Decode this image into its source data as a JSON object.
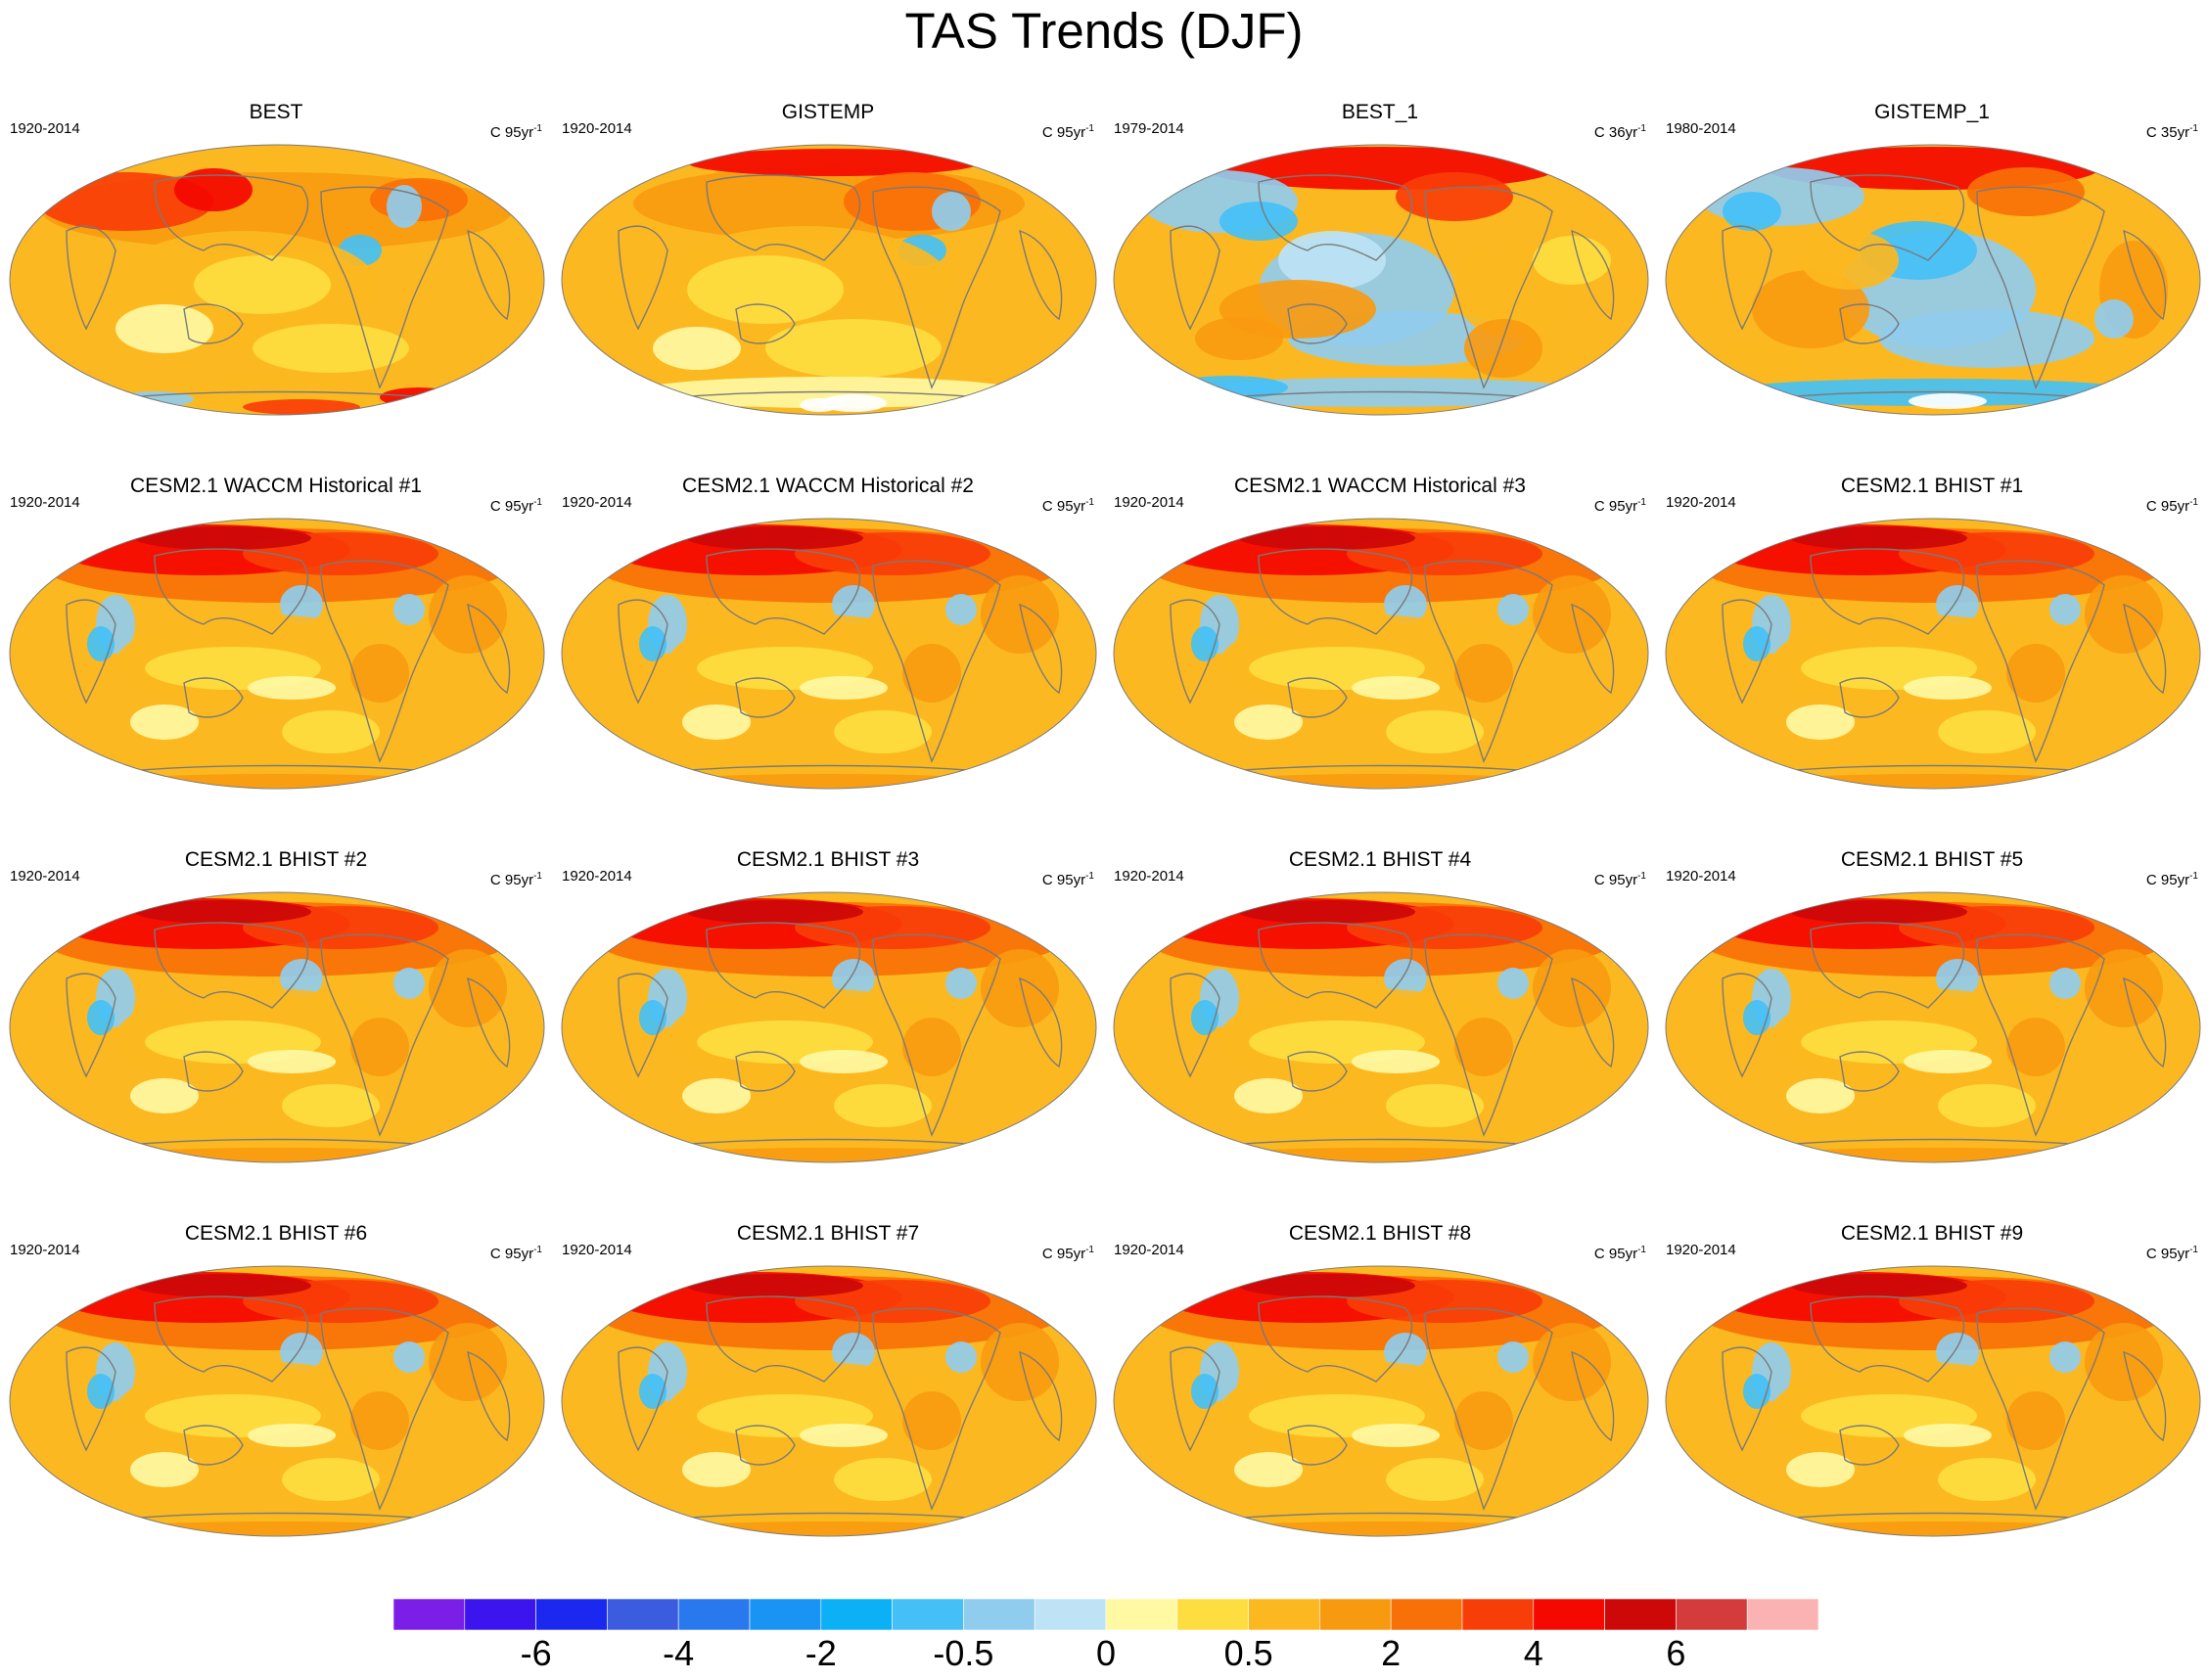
{
  "title": "TAS Trends (DJF)",
  "panels": [
    {
      "title": "BEST",
      "period": "1920-2014",
      "units": "C 95yr",
      "units_sup": "-1",
      "pattern": "best"
    },
    {
      "title": "GISTEMP",
      "period": "1920-2014",
      "units": "C 95yr",
      "units_sup": "-1",
      "pattern": "gistemp"
    },
    {
      "title": "BEST_1",
      "period": "1979-2014",
      "units": "C 36yr",
      "units_sup": "-1",
      "pattern": "recent"
    },
    {
      "title": "GISTEMP_1",
      "period": "1980-2014",
      "units": "C 35yr",
      "units_sup": "-1",
      "pattern": "recent2"
    },
    {
      "title": "CESM2.1 WACCM Historical #1",
      "period": "1920-2014",
      "units": "C 95yr",
      "units_sup": "-1",
      "pattern": "model"
    },
    {
      "title": "CESM2.1 WACCM Historical #2",
      "period": "1920-2014",
      "units": "C 95yr",
      "units_sup": "-1",
      "pattern": "model"
    },
    {
      "title": "CESM2.1 WACCM Historical #3",
      "period": "1920-2014",
      "units": "C 95yr",
      "units_sup": "-1",
      "pattern": "model"
    },
    {
      "title": "CESM2.1 BHIST #1",
      "period": "1920-2014",
      "units": "C 95yr",
      "units_sup": "-1",
      "pattern": "model"
    },
    {
      "title": "CESM2.1 BHIST #2",
      "period": "1920-2014",
      "units": "C 95yr",
      "units_sup": "-1",
      "pattern": "model"
    },
    {
      "title": "CESM2.1 BHIST #3",
      "period": "1920-2014",
      "units": "C 95yr",
      "units_sup": "-1",
      "pattern": "model"
    },
    {
      "title": "CESM2.1 BHIST #4",
      "period": "1920-2014",
      "units": "C 95yr",
      "units_sup": "-1",
      "pattern": "model"
    },
    {
      "title": "CESM2.1 BHIST #5",
      "period": "1920-2014",
      "units": "C 95yr",
      "units_sup": "-1",
      "pattern": "model"
    },
    {
      "title": "CESM2.1 BHIST #6",
      "period": "1920-2014",
      "units": "C 95yr",
      "units_sup": "-1",
      "pattern": "model"
    },
    {
      "title": "CESM2.1 BHIST #7",
      "period": "1920-2014",
      "units": "C 95yr",
      "units_sup": "-1",
      "pattern": "model"
    },
    {
      "title": "CESM2.1 BHIST #8",
      "period": "1920-2014",
      "units": "C 95yr",
      "units_sup": "-1",
      "pattern": "model"
    },
    {
      "title": "CESM2.1 BHIST #9",
      "period": "1920-2014",
      "units": "C 95yr",
      "units_sup": "-1",
      "pattern": "model"
    }
  ],
  "colorbar": {
    "colors": [
      "#7b1fe8",
      "#3c14ee",
      "#1a28f0",
      "#3c5ce0",
      "#2a78ee",
      "#1a94f4",
      "#0cb0f4",
      "#44c0f6",
      "#90ccee",
      "#bde3f4",
      "#fef9a2",
      "#fedd40",
      "#fcb820",
      "#f89a10",
      "#f87008",
      "#f83e08",
      "#f40800",
      "#cc0808",
      "#d43c3c",
      "#fbb2b2"
    ],
    "labels": [
      {
        "text": "-6",
        "after_box": 2
      },
      {
        "text": "-4",
        "after_box": 4
      },
      {
        "text": "-2",
        "after_box": 6
      },
      {
        "text": "-0.5",
        "after_box": 8
      },
      {
        "text": "0",
        "after_box": 10
      },
      {
        "text": "0.5",
        "after_box": 12
      },
      {
        "text": "2",
        "after_box": 14
      },
      {
        "text": "4",
        "after_box": 16
      },
      {
        "text": "6",
        "after_box": 18
      }
    ]
  }
}
